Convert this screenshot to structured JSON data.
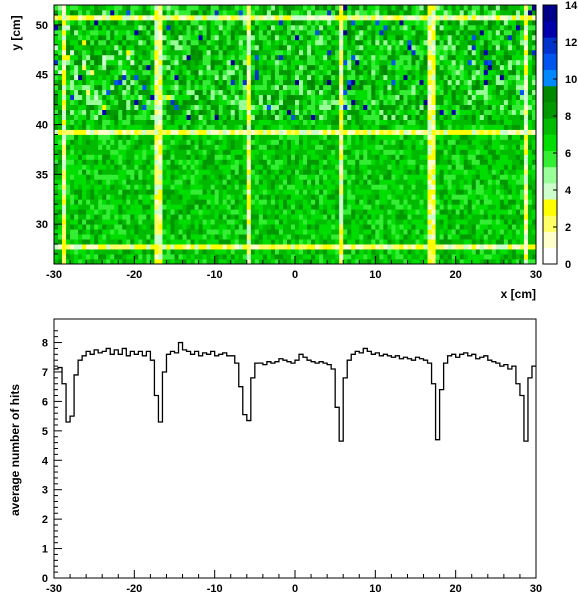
{
  "chart_data": [
    {
      "type": "heatmap",
      "title": "",
      "xlabel": "x [cm]",
      "ylabel": "y [cm]",
      "xlim": [
        -30,
        30
      ],
      "ylim": [
        26,
        52
      ],
      "x_ticks": [
        -30,
        -20,
        -10,
        0,
        10,
        20,
        30
      ],
      "y_ticks": [
        30,
        35,
        40,
        45,
        50
      ],
      "grid": false,
      "colorbar": {
        "range": [
          0,
          14
        ],
        "ticks": [
          0,
          2,
          4,
          6,
          8,
          10,
          12,
          14
        ],
        "colors": [
          "#ffffff",
          "#ffffcc",
          "#ffff66",
          "#ffff00",
          "#ccffcc",
          "#99ff99",
          "#33ee33",
          "#00dd00",
          "#00bb00",
          "#009900",
          "#008800",
          "#0088ff",
          "#0055ee",
          "#0033cc",
          "#0000aa",
          "#000088"
        ]
      },
      "bin_size": [
        0.5,
        0.5
      ],
      "vertical_gap_lines_x": [
        -28.7,
        -17,
        -5.7,
        5.7,
        17,
        28.7
      ],
      "horizontal_gap_lines_y": [
        27.6,
        39.1,
        50.6
      ],
      "typical_level": 7
    },
    {
      "type": "line",
      "title": "",
      "xlabel": "",
      "ylabel": "average number of hits",
      "xlim": [
        -30,
        30
      ],
      "ylim": [
        0,
        8.8
      ],
      "x_ticks": [
        -30,
        -20,
        -10,
        0,
        10,
        20,
        30
      ],
      "y_ticks": [
        0,
        1,
        2,
        3,
        4,
        5,
        6,
        7,
        8
      ],
      "grid": false,
      "series": [
        {
          "style": "step",
          "x": [
            -30.0,
            -29.5,
            -29.0,
            -28.5,
            -28.0,
            -27.5,
            -27.0,
            -26.5,
            -26.0,
            -25.5,
            -25.0,
            -24.5,
            -24.0,
            -23.5,
            -23.0,
            -22.5,
            -22.0,
            -21.5,
            -21.0,
            -20.5,
            -20.0,
            -19.5,
            -19.0,
            -18.5,
            -18.0,
            -17.5,
            -17.0,
            -16.5,
            -16.0,
            -15.5,
            -15.0,
            -14.5,
            -14.0,
            -13.5,
            -13.0,
            -12.5,
            -12.0,
            -11.5,
            -11.0,
            -10.5,
            -10.0,
            -9.5,
            -9.0,
            -8.5,
            -8.0,
            -7.5,
            -7.0,
            -6.5,
            -6.0,
            -5.5,
            -5.0,
            -4.5,
            -4.0,
            -3.5,
            -3.0,
            -2.5,
            -2.0,
            -1.5,
            -1.0,
            -0.5,
            0.0,
            0.5,
            1.0,
            1.5,
            2.0,
            2.5,
            3.0,
            3.5,
            4.0,
            4.5,
            5.0,
            5.5,
            6.0,
            6.5,
            7.0,
            7.5,
            8.0,
            8.5,
            9.0,
            9.5,
            10.0,
            10.5,
            11.0,
            11.5,
            12.0,
            12.5,
            13.0,
            13.5,
            14.0,
            14.5,
            15.0,
            15.5,
            16.0,
            16.5,
            17.0,
            17.5,
            18.0,
            18.5,
            19.0,
            19.5,
            20.0,
            20.5,
            21.0,
            21.5,
            22.0,
            22.5,
            23.0,
            23.5,
            24.0,
            24.5,
            25.0,
            25.5,
            26.0,
            26.5,
            27.0,
            27.5,
            28.0,
            28.5,
            29.0,
            29.5
          ],
          "y": [
            7.1,
            7.15,
            6.6,
            5.3,
            5.5,
            6.9,
            7.4,
            7.55,
            7.7,
            7.6,
            7.75,
            7.65,
            7.7,
            7.8,
            7.6,
            7.75,
            7.6,
            7.8,
            7.55,
            7.7,
            7.6,
            7.7,
            7.55,
            7.7,
            7.4,
            6.2,
            5.3,
            7.0,
            7.6,
            7.7,
            7.65,
            8.0,
            7.75,
            7.7,
            7.6,
            7.7,
            7.55,
            7.65,
            7.6,
            7.7,
            7.55,
            7.6,
            7.65,
            7.55,
            7.55,
            7.3,
            6.5,
            5.55,
            5.35,
            6.8,
            7.3,
            7.3,
            7.25,
            7.35,
            7.3,
            7.35,
            7.45,
            7.4,
            7.35,
            7.3,
            7.4,
            7.6,
            7.5,
            7.4,
            7.35,
            7.3,
            7.35,
            7.3,
            7.25,
            7.1,
            5.8,
            4.65,
            6.8,
            7.4,
            7.6,
            7.7,
            7.65,
            7.8,
            7.7,
            7.6,
            7.65,
            7.55,
            7.6,
            7.55,
            7.5,
            7.55,
            7.45,
            7.5,
            7.45,
            7.4,
            7.5,
            7.45,
            7.4,
            7.3,
            6.6,
            4.7,
            6.4,
            7.3,
            7.55,
            7.6,
            7.5,
            7.6,
            7.65,
            7.55,
            7.6,
            7.45,
            7.5,
            7.55,
            7.4,
            7.35,
            7.3,
            7.2,
            7.25,
            7.1,
            7.2,
            6.6,
            6.2,
            4.65,
            6.8,
            7.2
          ]
        }
      ]
    }
  ]
}
